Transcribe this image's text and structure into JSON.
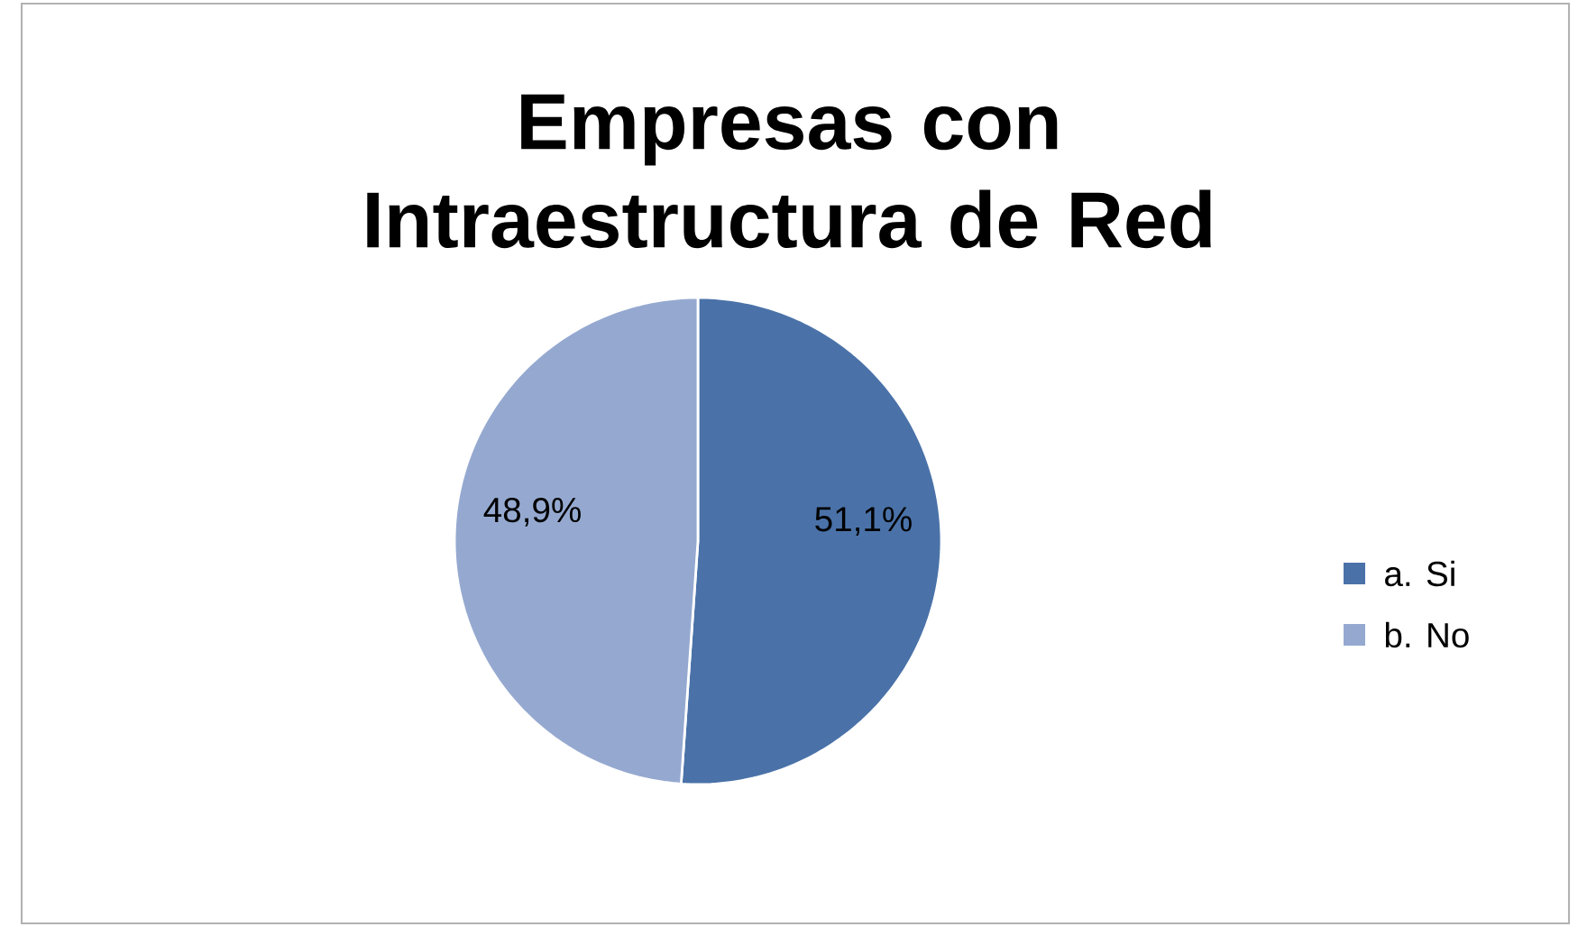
{
  "chart_data": {
    "type": "pie",
    "title": "Empresas con Intraestructura de Red",
    "categories": [
      "a. Si",
      "b. No"
    ],
    "values": [
      51.1,
      48.9
    ],
    "colors": [
      "#4a72a8",
      "#95a9d0"
    ],
    "value_labels": [
      "51,1%",
      "48,9%"
    ],
    "legend": "right"
  }
}
